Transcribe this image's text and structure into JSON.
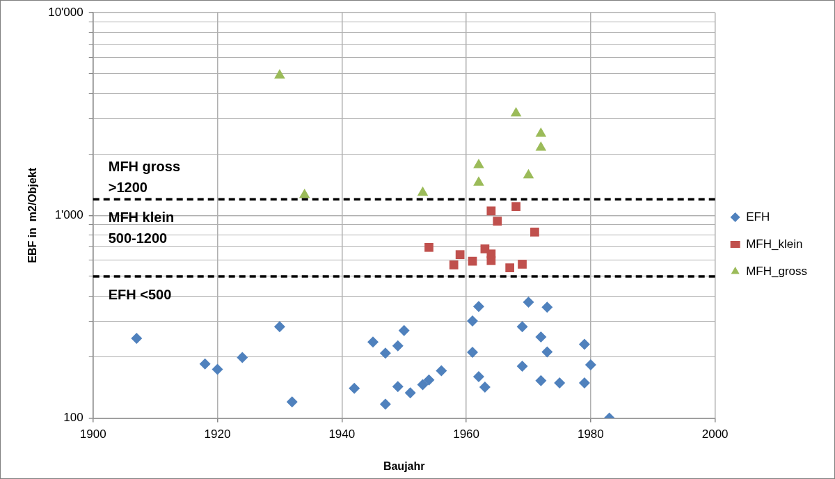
{
  "chart_data": {
    "type": "scatter",
    "xlabel": "Baujahr",
    "ylabel": "EBF in  m2/Objekt",
    "log": "y",
    "grid": true,
    "legend": "right",
    "xlim": [
      1900,
      2000
    ],
    "xticks": [
      1900,
      1920,
      1940,
      1960,
      1980,
      2000
    ],
    "ylim": [
      100,
      10000
    ],
    "yticks": [
      {
        "value": 100,
        "label": "100"
      },
      {
        "value": 200,
        "label": null
      },
      {
        "value": 300,
        "label": null
      },
      {
        "value": 400,
        "label": null
      },
      {
        "value": 500,
        "label": null
      },
      {
        "value": 600,
        "label": null
      },
      {
        "value": 700,
        "label": null
      },
      {
        "value": 800,
        "label": null
      },
      {
        "value": 900,
        "label": null
      },
      {
        "value": 1000,
        "label": "1'000"
      },
      {
        "value": 2000,
        "label": null
      },
      {
        "value": 3000,
        "label": null
      },
      {
        "value": 4000,
        "label": null
      },
      {
        "value": 5000,
        "label": null
      },
      {
        "value": 6000,
        "label": null
      },
      {
        "value": 7000,
        "label": null
      },
      {
        "value": 8000,
        "label": null
      },
      {
        "value": 9000,
        "label": null
      },
      {
        "value": 10000,
        "label": "10'000"
      }
    ],
    "ref_lines": [
      {
        "axis": "y",
        "value": 1200,
        "color": "#000000",
        "line_style": "dashed"
      },
      {
        "axis": "y",
        "value": 500,
        "color": "#000000",
        "line_style": "dashed"
      }
    ],
    "annotations": [
      "MFH gross >1200",
      "MFH klein 500-1200",
      "EFH <500"
    ],
    "series": [
      {
        "name": "EFH",
        "color": "#4f81bd",
        "marker": "diamond",
        "x": [
          1907,
          1918,
          1920,
          1924,
          1930,
          1932,
          1942,
          1945,
          1947,
          1947,
          1949,
          1949,
          1950,
          1951,
          1953,
          1954,
          1956,
          1961,
          1961,
          1962,
          1962,
          1963,
          1969,
          1970,
          1969,
          1972,
          1972,
          1973,
          1973,
          1975,
          1979,
          1979,
          1980,
          1983
        ],
        "values": [
          247,
          185,
          174,
          199,
          282,
          120,
          140,
          237,
          209,
          117,
          227,
          143,
          270,
          133,
          146,
          154,
          171,
          301,
          211,
          355,
          160,
          142,
          282,
          373,
          180,
          251,
          153,
          352,
          212,
          149,
          231,
          149,
          183,
          100
        ]
      },
      {
        "name": "MFH_klein",
        "color": "#c0504d",
        "marker": "square",
        "x": [
          1954,
          1958,
          1959,
          1961,
          1963,
          1964,
          1964,
          1964,
          1965,
          1968,
          1967,
          1969,
          1971
        ],
        "values": [
          695,
          569,
          640,
          594,
          683,
          645,
          598,
          1052,
          936,
          1105,
          551,
          574,
          827
        ]
      },
      {
        "name": "MFH_gross",
        "color": "#9bbb59",
        "marker": "triangle",
        "x": [
          1930,
          1934,
          1953,
          1962,
          1962,
          1968,
          1970,
          1972,
          1972
        ],
        "values": [
          4910,
          1261,
          1293,
          1770,
          1452,
          3190,
          1578,
          2530,
          2160
        ]
      }
    ]
  }
}
